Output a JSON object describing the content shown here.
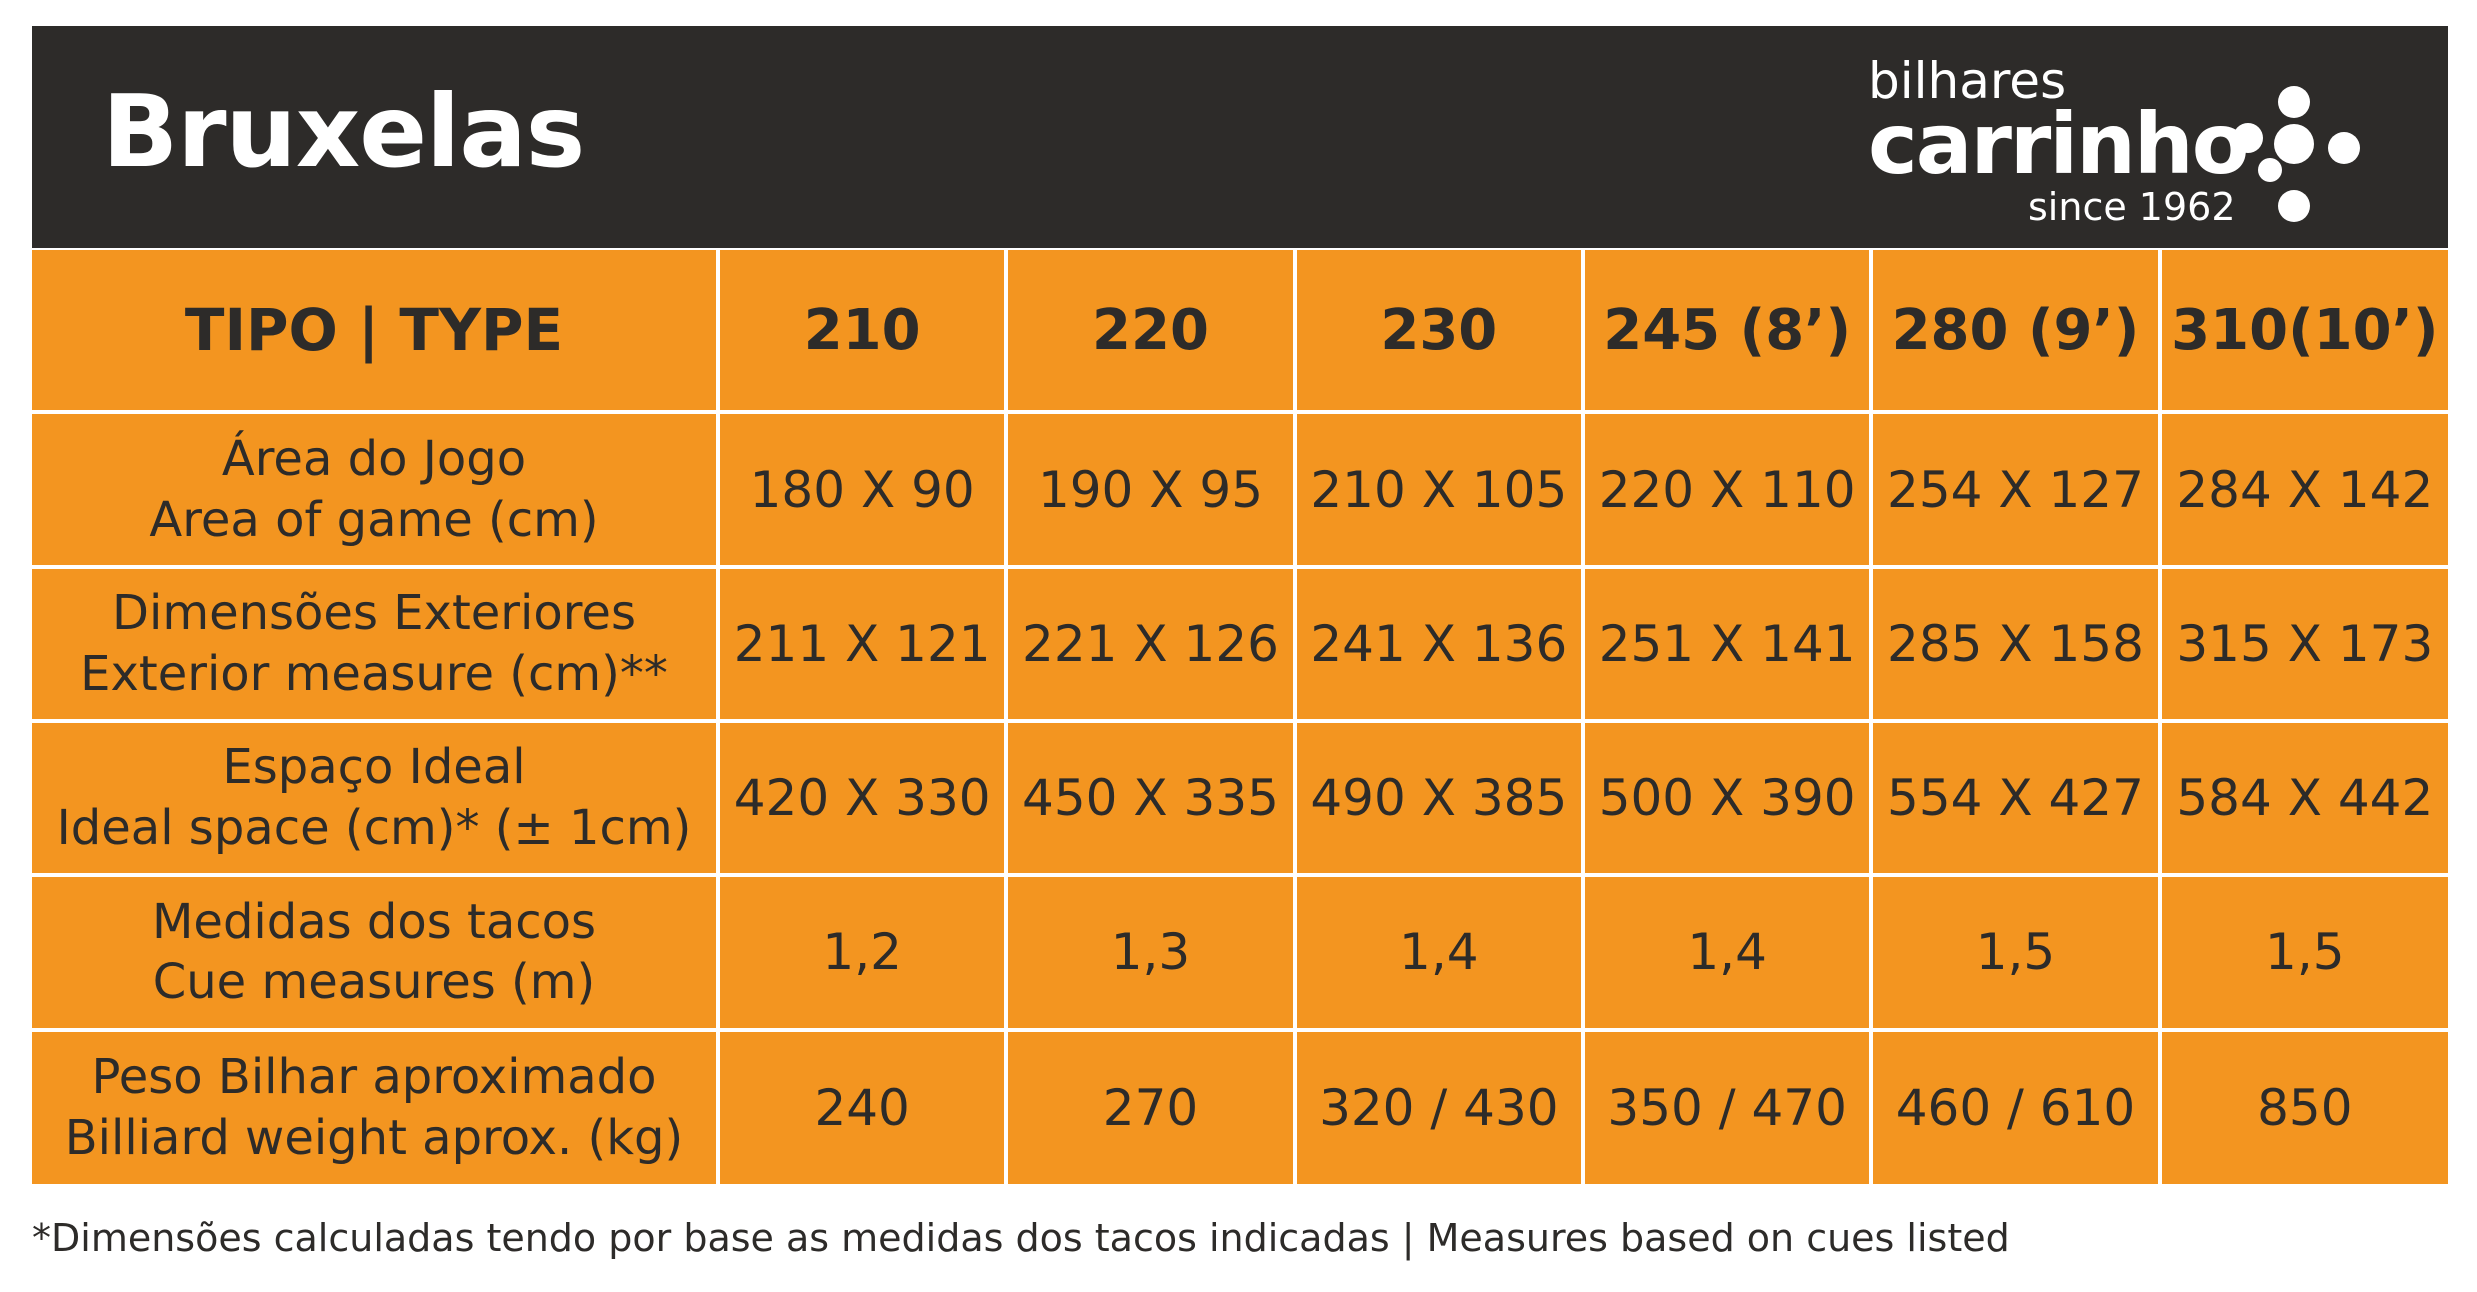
{
  "header": {
    "title": "Bruxelas",
    "logo": {
      "top": "bilhares",
      "main": "carrinho",
      "since": "since 1962"
    }
  },
  "table": {
    "type_label": "TIPO | TYPE",
    "columns": [
      "210",
      "220",
      "230",
      "245 (8’)",
      "280 (9’)",
      "310(10’)"
    ],
    "rows": [
      {
        "label_pt": "Área do Jogo",
        "label_en": "Area of game (cm)",
        "values": [
          "180 X 90",
          "190 X 95",
          "210 X 105",
          "220 X 110",
          "254 X 127",
          "284 X 142"
        ]
      },
      {
        "label_pt": "Dimensões Exteriores",
        "label_en": "Exterior measure (cm)**",
        "values": [
          "211 X 121",
          "221 X 126",
          "241 X 136",
          "251 X 141",
          "285 X 158",
          "315 X 173"
        ]
      },
      {
        "label_pt": "Espaço Ideal",
        "label_en": "Ideal space (cm)* (± 1cm)",
        "values": [
          "420 X 330",
          "450 X 335",
          "490 X 385",
          "500 X 390",
          "554 X 427",
          "584 X 442"
        ]
      },
      {
        "label_pt": "Medidas dos tacos",
        "label_en": "Cue measures (m)",
        "values": [
          "1,2",
          "1,3",
          "1,4",
          "1,4",
          "1,5",
          "1,5"
        ]
      },
      {
        "label_pt": "Peso Bilhar aproximado",
        "label_en": "Billiard weight aprox. (kg)",
        "values": [
          "240",
          "270",
          "320 / 430",
          "350 / 470",
          "460 / 610",
          "850"
        ]
      }
    ]
  },
  "footnote": "*Dimensões calculadas tendo por base as medidas dos tacos indicadas | Measures based on cues listed",
  "colors": {
    "header_bg": "#2d2b29",
    "table_bg": "#f39520",
    "text_dark": "#2d2b29"
  }
}
